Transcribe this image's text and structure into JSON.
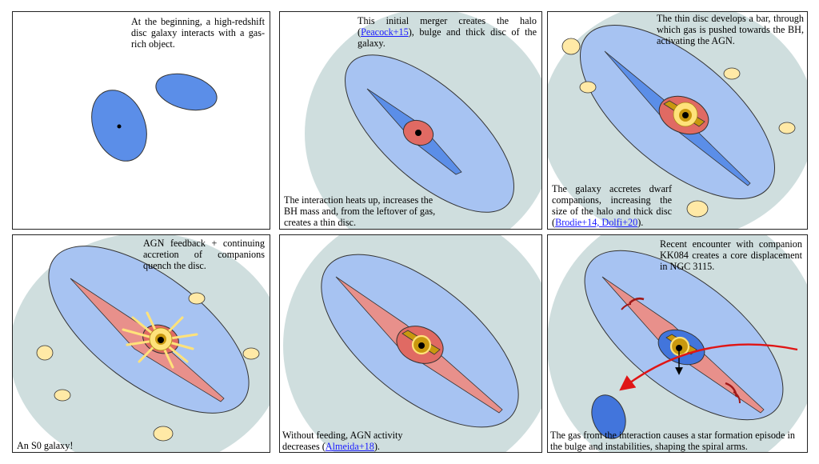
{
  "panels": [
    {
      "top": "At the beginning, a high-redshift disc galaxy interacts with a gas-rich object."
    },
    {
      "top_a": "This initial merger creates the halo (",
      "top_link": "Peacock+15",
      "top_b": "), bulge and thick disc of the galaxy.",
      "bottom": "The interaction heats up, increases the BH mass and, from the leftover of gas, creates a thin disc."
    },
    {
      "top": "The thin disc develops a bar, through which gas is pushed towards the BH, activating the AGN.",
      "bottom_a": "The galaxy accretes dwarf companions, increasing the size of the halo and thick disc (",
      "bottom_link": "Brodie+14, Dolfi+20",
      "bottom_b": ")."
    },
    {
      "top": "AGN feedback + continuing accretion of companions quench the disc.",
      "bottom": "An S0 galaxy!"
    },
    {
      "bottom_a": "Without feeding, AGN activity decreases (",
      "bottom_link": "Almeida+18",
      "bottom_b": ")."
    },
    {
      "top": "Recent encounter with companion KK084 creates a core displacement in NGC 3115.",
      "bottom": "The gas from the interaction causes a star formation episode in the bulge and instabilities, shaping the spiral arms."
    }
  ],
  "colors": {
    "halo": "#cfdede",
    "thick_disc": "#a7c3f2",
    "blue": "#5b8ee8",
    "bulge_red": "#e06a63",
    "pink_disc": "#e8908b",
    "bar_gold": "#c9980f",
    "agn_yellow": "#ffe27a",
    "dwarf": "#ffe9a6",
    "arrow_red": "#e01515",
    "arm_red": "#a01818"
  }
}
